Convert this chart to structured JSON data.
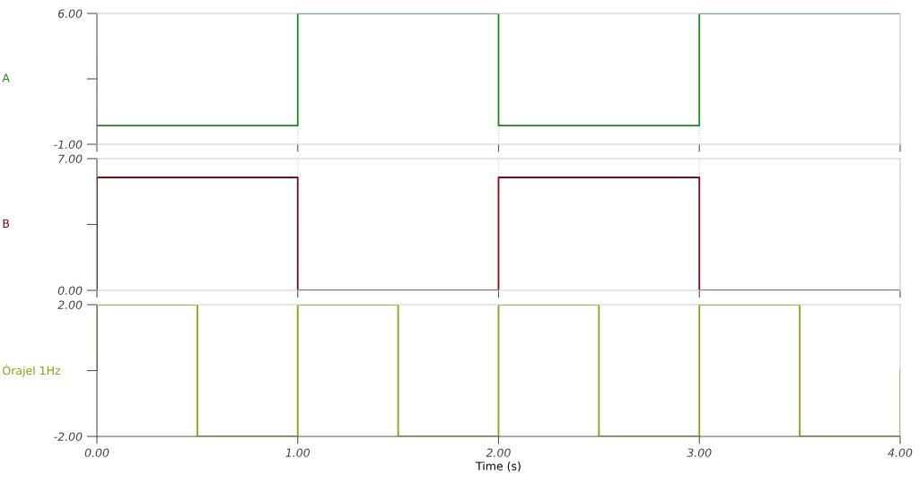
{
  "chart_data": [
    {
      "type": "step",
      "ylabel": "A",
      "x": [
        0,
        1,
        2,
        3,
        4
      ],
      "series": [
        {
          "color": "#1e8a1e",
          "values": [
            0,
            6,
            0,
            6,
            6
          ]
        }
      ],
      "xlim": [
        0,
        4
      ],
      "xticks": [
        0,
        1,
        2,
        3,
        4
      ],
      "ylim": [
        -1,
        6
      ],
      "yticks": [
        {
          "value": -1,
          "label": "-1.00"
        },
        {
          "value": 2.5,
          "label": null
        },
        {
          "value": 6,
          "label": "6.00"
        }
      ],
      "tick_labels": "y",
      "grid": "x"
    },
    {
      "type": "step",
      "ylabel": "B",
      "x": [
        0,
        0,
        1,
        2,
        3,
        4
      ],
      "series": [
        {
          "color": "#7a0f1a",
          "values": [
            0,
            6,
            0,
            6,
            0,
            0
          ]
        }
      ],
      "xlim": [
        0,
        4
      ],
      "xticks": [
        0,
        1,
        2,
        3,
        4
      ],
      "ylim": [
        0,
        7
      ],
      "yticks": [
        {
          "value": 0,
          "label": "0.00"
        },
        {
          "value": 3.5,
          "label": null
        },
        {
          "value": 7,
          "label": "7.00"
        }
      ],
      "tick_labels": "y",
      "grid": "x"
    },
    {
      "type": "step",
      "ylabel": "Órajel 1Hz",
      "xlabel": "Time (s)",
      "x": [
        0,
        0,
        0.5,
        1,
        1.5,
        2,
        2.5,
        3,
        3.5,
        4
      ],
      "series": [
        {
          "color": "#9a9a10",
          "values": [
            0,
            2,
            -2,
            2,
            -2,
            2,
            -2,
            2,
            -2,
            0
          ]
        }
      ],
      "xlim": [
        0,
        4
      ],
      "xticks": [
        {
          "value": 0,
          "label": "0.00"
        },
        {
          "value": 1,
          "label": "1.00"
        },
        {
          "value": 2,
          "label": "2.00"
        },
        {
          "value": 3,
          "label": "3.00"
        },
        {
          "value": 4,
          "label": "4.00"
        }
      ],
      "ylim": [
        -2,
        2
      ],
      "yticks": [
        {
          "value": -2,
          "label": "-2.00"
        },
        {
          "value": 0,
          "label": null
        },
        {
          "value": 2,
          "label": "2.00"
        }
      ]
    }
  ]
}
